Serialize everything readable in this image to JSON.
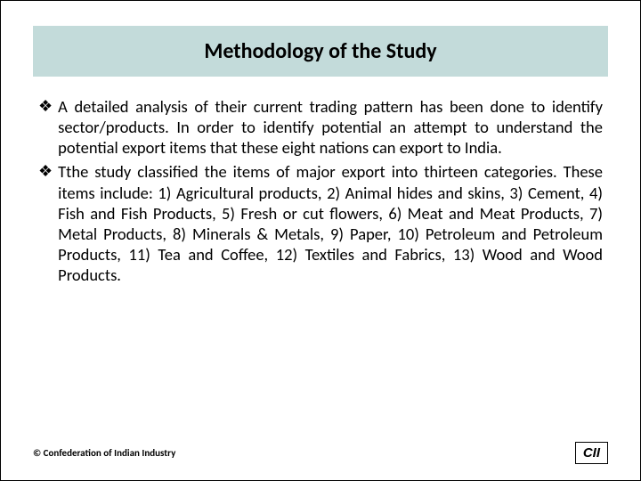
{
  "title": "Methodology of the Study",
  "bullets": [
    {
      "marker": "❖",
      "text": "A detailed analysis of their current trading pattern has been done to identify sector/products. In order to identify potential an attempt to understand the potential export items that these eight nations can export to India."
    },
    {
      "marker": "❖",
      "text": "Tthe study classified the items of major export into thirteen categories. These items include: 1) Agricultural products, 2) Animal hides and skins, 3) Cement, 4) Fish and Fish Products, 5) Fresh or cut flowers, 6) Meat and Meat Products, 7) Metal Products, 8) Minerals & Metals, 9) Paper, 10) Petroleum and Petroleum Products, 11) Tea and Coffee, 12) Textiles and Fabrics, 13) Wood and Wood Products."
    }
  ],
  "footer": {
    "copyright": "© Confederation of Indian Industry",
    "logo_text": "CII"
  },
  "colors": {
    "title_bg": "#c3dbda",
    "text": "#000000",
    "page_bg": "#ffffff"
  }
}
